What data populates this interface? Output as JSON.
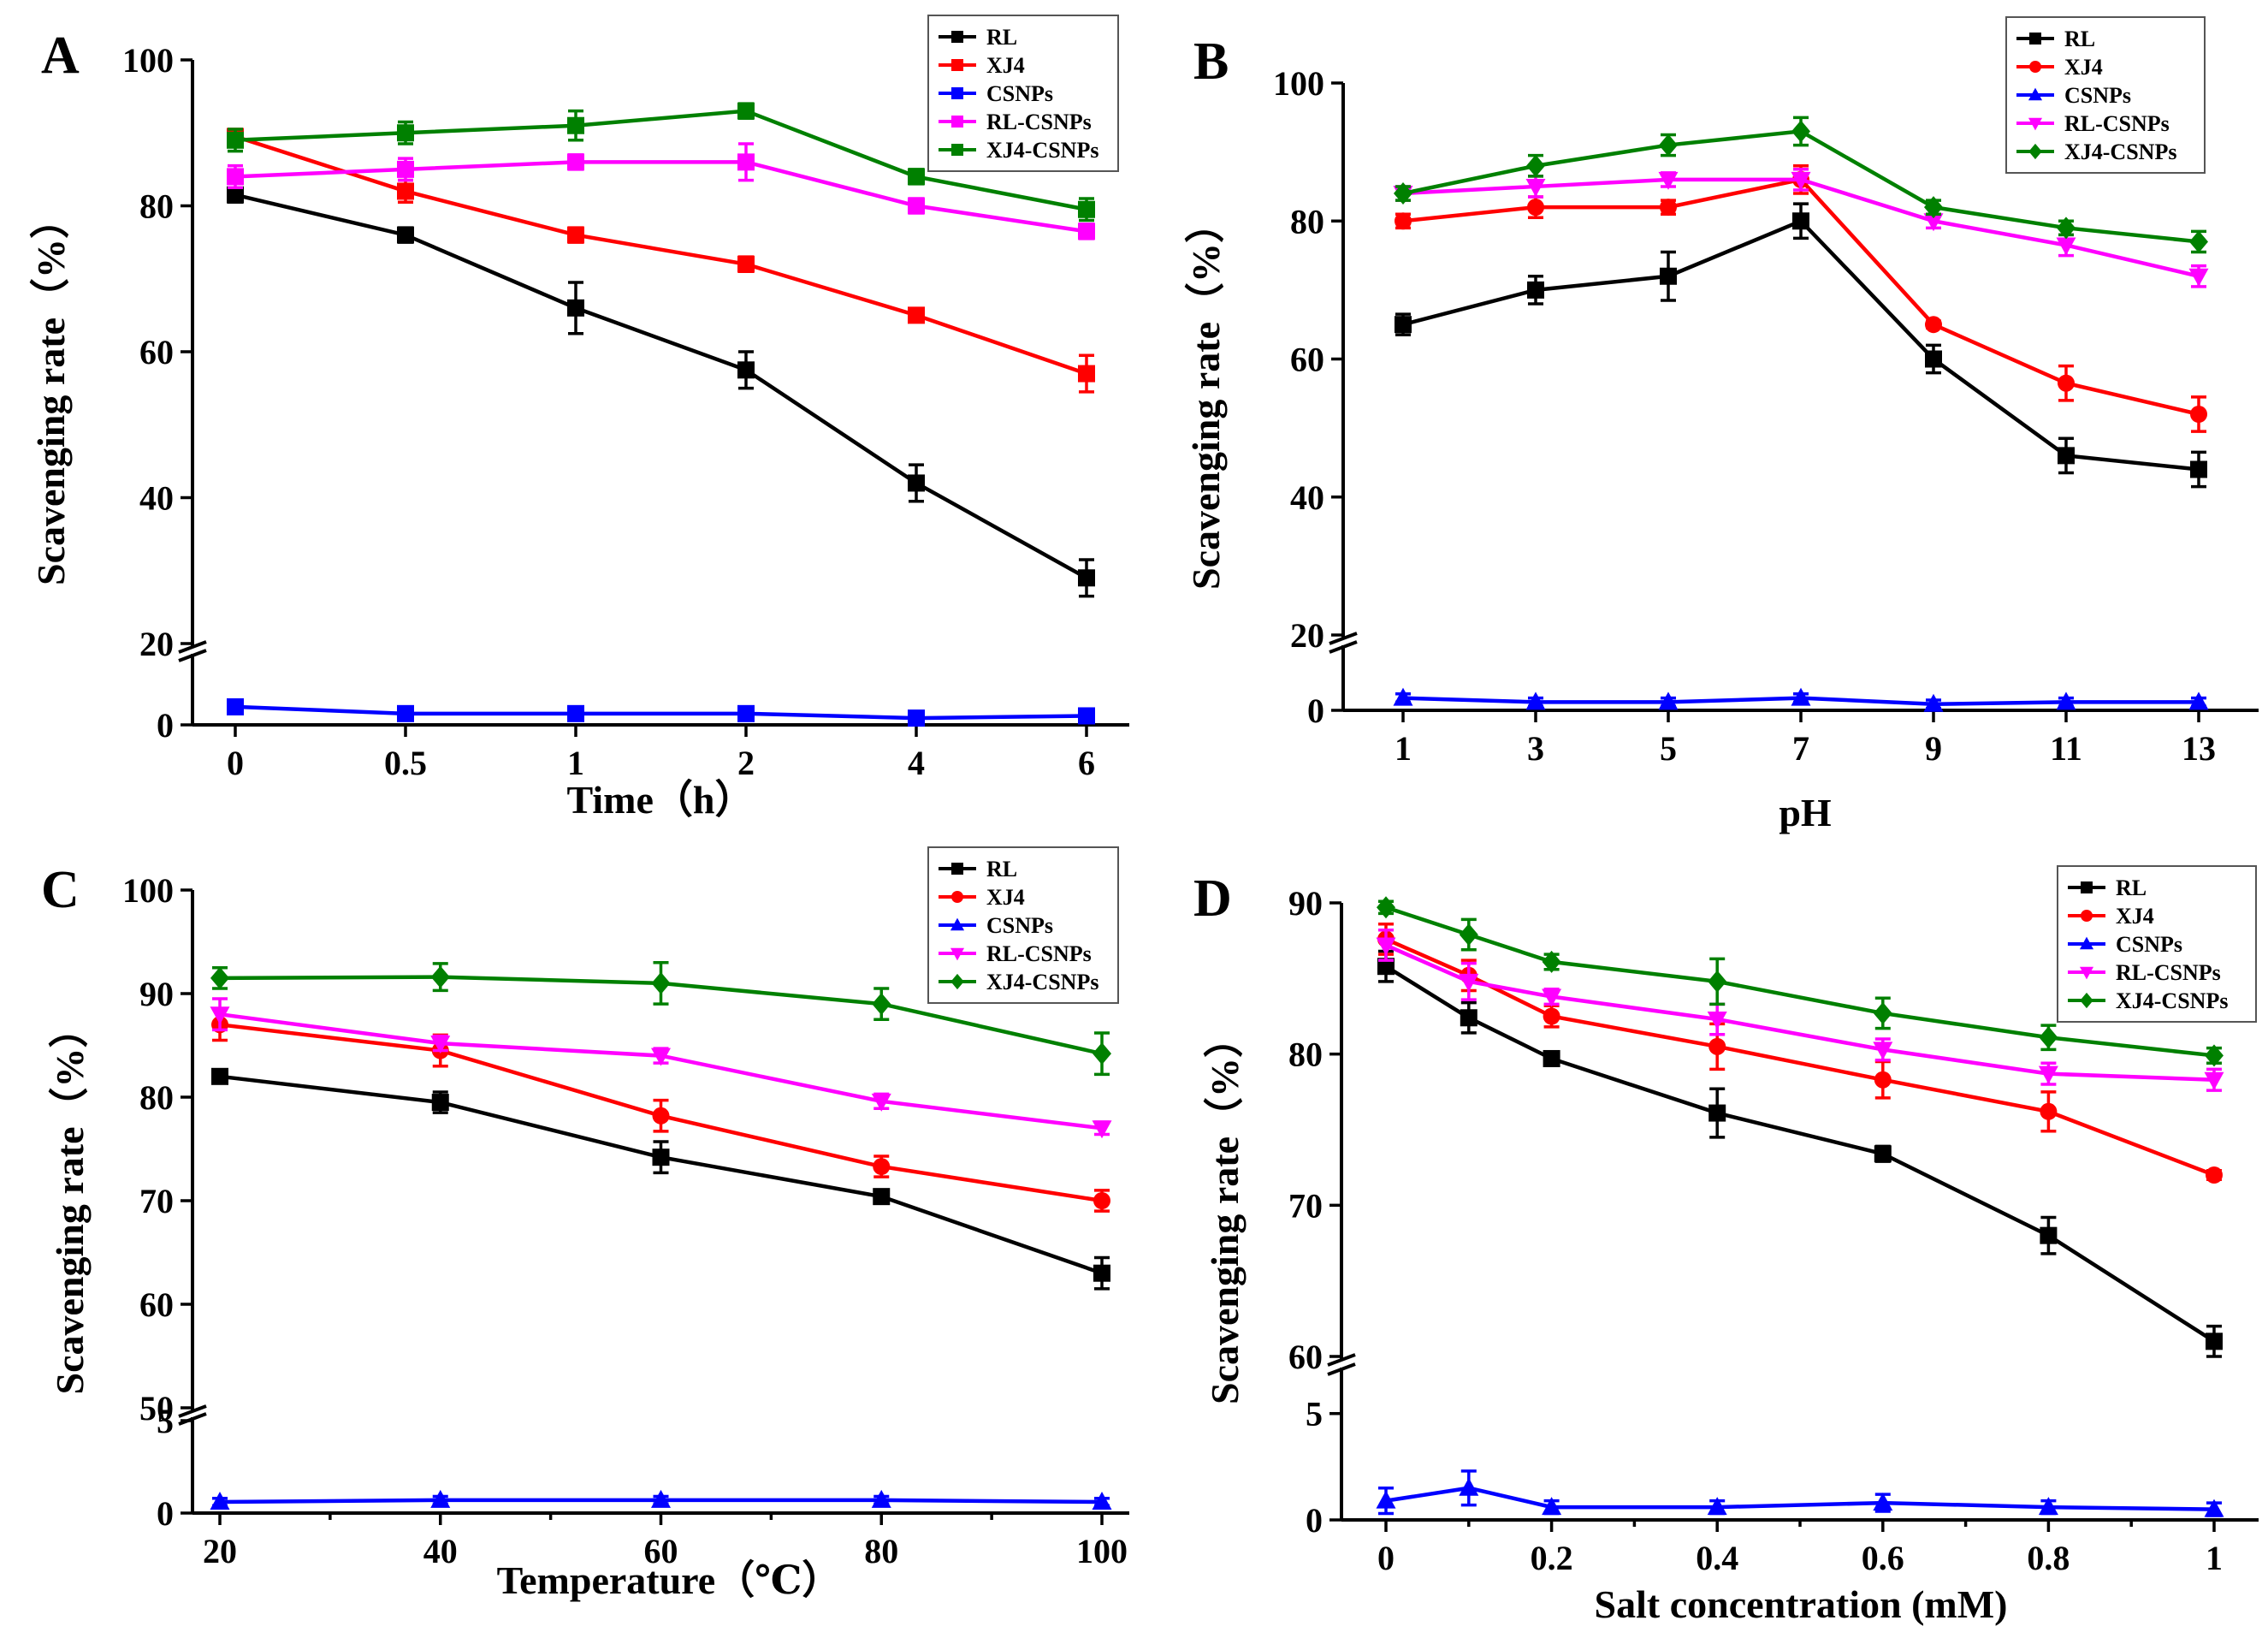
{
  "figure": {
    "colors": {
      "RL": "#000000",
      "XJ4": "#ff0000",
      "CSNPs": "#0000ff",
      "RL-CSNPs": "#ff00ff",
      "XJ4-CSNPs": "#008000"
    },
    "markers": {
      "RL": "square",
      "XJ4": "circle",
      "CSNPs": "triangle-up",
      "RL-CSNPs": "triangle-down",
      "XJ4-CSNPs": "diamond"
    }
  },
  "chart_data": [
    {
      "panel_label": "A",
      "type": "line",
      "xlabel": "Time（h）",
      "ylabel": "Scavenging rate（%）",
      "categories": [
        "0",
        "0.5",
        "1",
        "2",
        "4",
        "6"
      ],
      "y_upper": {
        "range": [
          20,
          100
        ],
        "ticks": [
          "20",
          "40",
          "60",
          "80",
          "100"
        ]
      },
      "y_lower": {
        "range": [
          0,
          3
        ],
        "ticks": [
          "0"
        ]
      },
      "legend_position": "top-right",
      "series": [
        {
          "name": "RL",
          "marker": "square",
          "values": [
            81.5,
            76,
            66,
            57.5,
            42,
            29
          ],
          "errors": [
            1,
            1,
            3.5,
            2.5,
            2.5,
            2.5
          ]
        },
        {
          "name": "XJ4",
          "marker": "square",
          "values": [
            89.5,
            82,
            76,
            72,
            65,
            57
          ],
          "errors": [
            1,
            1.5,
            1,
            1,
            0.5,
            2.5
          ]
        },
        {
          "name": "CSNPs",
          "marker": "square",
          "values": [
            0.8,
            0.5,
            0.5,
            0.5,
            0.3,
            0.4
          ],
          "errors": [
            0.2,
            0.2,
            0.2,
            0.2,
            0.2,
            0.2
          ]
        },
        {
          "name": "RL-CSNPs",
          "marker": "square",
          "values": [
            84,
            85,
            86,
            86,
            80,
            76.5
          ],
          "errors": [
            1.5,
            1.5,
            1,
            2.5,
            1,
            1
          ]
        },
        {
          "name": "XJ4-CSNPs",
          "marker": "square",
          "values": [
            89,
            90,
            91,
            93,
            84,
            79.5
          ],
          "errors": [
            1.5,
            1.5,
            2,
            1,
            1,
            1.5
          ]
        }
      ]
    },
    {
      "panel_label": "B",
      "type": "line",
      "xlabel": "pH",
      "ylabel": "Scavenging rate（%）",
      "categories": [
        "1",
        "3",
        "5",
        "7",
        "9",
        "11",
        "13"
      ],
      "y_upper": {
        "range": [
          20,
          100
        ],
        "ticks": [
          "20",
          "40",
          "60",
          "80",
          "100"
        ]
      },
      "y_lower": {
        "range": [
          0,
          3
        ],
        "ticks": [
          "0"
        ]
      },
      "legend_position": "top-right",
      "series": [
        {
          "name": "RL",
          "values": [
            65,
            70,
            72,
            80,
            60,
            46,
            44
          ],
          "errors": [
            1.5,
            2,
            3.5,
            2.5,
            2,
            2.5,
            2.5
          ]
        },
        {
          "name": "XJ4",
          "values": [
            80,
            82,
            82,
            86,
            65,
            56.5,
            52
          ],
          "errors": [
            1,
            1.5,
            1,
            2,
            0.5,
            2.5,
            2.5
          ]
        },
        {
          "name": "CSNPs",
          "values": [
            0.6,
            0.4,
            0.4,
            0.6,
            0.3,
            0.4,
            0.4
          ],
          "errors": [
            0.2,
            0.2,
            0.2,
            0.2,
            0.2,
            0.2,
            0.2
          ]
        },
        {
          "name": "RL-CSNPs",
          "values": [
            84,
            85,
            86,
            86,
            80,
            76.5,
            72
          ],
          "errors": [
            1,
            1.5,
            1,
            1.5,
            1,
            1.5,
            1.5
          ]
        },
        {
          "name": "XJ4-CSNPs",
          "values": [
            84,
            88,
            91,
            93,
            82,
            79,
            77
          ],
          "errors": [
            1,
            1.5,
            1.5,
            2,
            1,
            1,
            1.5
          ]
        }
      ]
    },
    {
      "panel_label": "C",
      "type": "line",
      "xlabel": "Temperature（℃）",
      "ylabel": "Scavenging rate（%）",
      "categories": [
        "20",
        "40",
        "60",
        "80",
        "100"
      ],
      "y_upper": {
        "range": [
          50,
          100
        ],
        "ticks": [
          "50",
          "60",
          "70",
          "80",
          "90",
          "100"
        ]
      },
      "y_lower": {
        "range": [
          0,
          5
        ],
        "ticks": [
          "0",
          "5"
        ]
      },
      "legend_position": "top-right",
      "series": [
        {
          "name": "RL",
          "values": [
            82,
            79.5,
            74.2,
            70.4,
            63
          ],
          "errors": [
            0.4,
            1,
            1.5,
            0.4,
            1.5
          ]
        },
        {
          "name": "XJ4",
          "values": [
            87,
            84.5,
            78.2,
            73.3,
            70
          ],
          "errors": [
            1.5,
            1.5,
            1.5,
            1,
            1
          ]
        },
        {
          "name": "CSNPs",
          "values": [
            0.6,
            0.7,
            0.7,
            0.7,
            0.6
          ],
          "errors": [
            0.2,
            0.2,
            0.2,
            0.2,
            0.2
          ]
        },
        {
          "name": "RL-CSNPs",
          "values": [
            88,
            85.2,
            84,
            79.6,
            77
          ],
          "errors": [
            1.5,
            0.7,
            0.7,
            0.7,
            0.6
          ]
        },
        {
          "name": "XJ4-CSNPs",
          "values": [
            91.5,
            91.6,
            91,
            89,
            84.2
          ],
          "errors": [
            1,
            1.3,
            2,
            1.5,
            2
          ]
        }
      ]
    },
    {
      "panel_label": "D",
      "type": "line",
      "xlabel": "Salt concentration (mM)",
      "ylabel": "Scavenging rate（%）",
      "x": [
        0,
        0.1,
        0.2,
        0.4,
        0.6,
        0.8,
        1
      ],
      "x_ticks": [
        "0",
        "0.2",
        "0.4",
        "0.6",
        "0.8",
        "1"
      ],
      "y_upper": {
        "range": [
          60,
          90
        ],
        "ticks": [
          "60",
          "70",
          "80",
          "90"
        ]
      },
      "y_lower": {
        "range": [
          0,
          7
        ],
        "ticks": [
          "0",
          "5"
        ]
      },
      "legend_position": "top-right",
      "series": [
        {
          "name": "RL",
          "values": [
            85.8,
            82.4,
            79.7,
            76.1,
            73.4,
            68,
            61
          ],
          "errors": [
            1,
            1,
            0.4,
            1.6,
            0.5,
            1.2,
            1
          ]
        },
        {
          "name": "XJ4",
          "values": [
            87.6,
            85.2,
            82.5,
            80.5,
            78.3,
            76.2,
            72
          ],
          "errors": [
            1,
            1,
            0.7,
            1.5,
            1.2,
            1.3,
            0.3
          ]
        },
        {
          "name": "CSNPs",
          "values": [
            0.9,
            1.5,
            0.6,
            0.6,
            0.8,
            0.6,
            0.5
          ],
          "errors": [
            0.6,
            0.8,
            0.3,
            0.3,
            0.4,
            0.3,
            0.3
          ]
        },
        {
          "name": "RL-CSNPs",
          "values": [
            87.2,
            84.8,
            83.8,
            82.3,
            80.3,
            78.7,
            78.3
          ],
          "errors": [
            1,
            1.2,
            0.5,
            1,
            0.7,
            0.7,
            0.7
          ]
        },
        {
          "name": "XJ4-CSNPs",
          "values": [
            89.7,
            87.9,
            86.1,
            84.8,
            82.7,
            81.1,
            79.9
          ],
          "errors": [
            0.4,
            1,
            0.5,
            1.5,
            1,
            0.8,
            0.5
          ]
        }
      ]
    }
  ]
}
